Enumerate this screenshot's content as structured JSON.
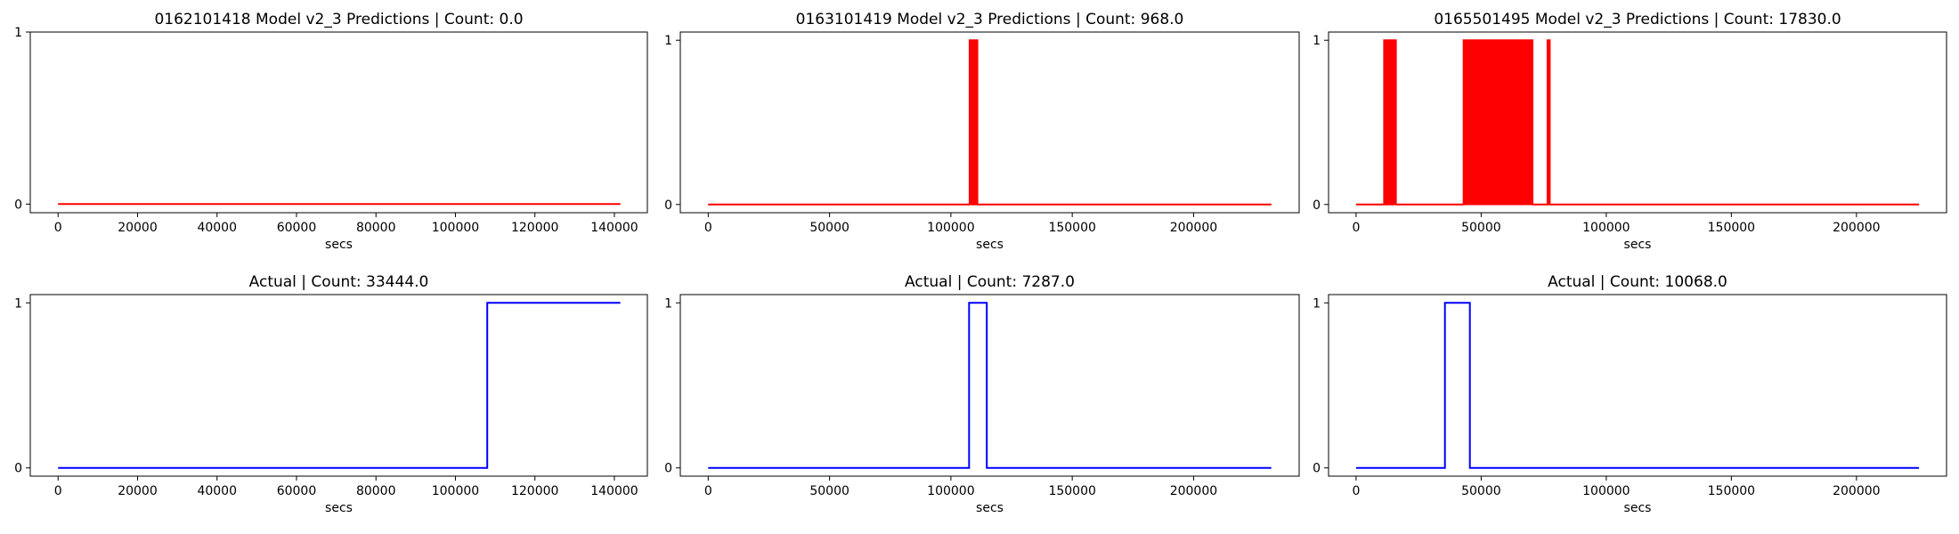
{
  "chart_data": [
    {
      "type": "line",
      "title": "0162101418 Model v2_3 Predictions | Count: 0.0",
      "xlabel": "secs",
      "ylabel": "",
      "xlim": [
        -7000,
        148300
      ],
      "ylim": [
        -0.05,
        1.0
      ],
      "xticks": [
        0,
        20000,
        40000,
        60000,
        80000,
        100000,
        120000,
        140000
      ],
      "yticks": [
        0,
        1
      ],
      "grid": false,
      "series": [
        {
          "color": "#ff0000",
          "fill": false,
          "x": [
            0,
            141500
          ],
          "y": [
            0,
            0
          ]
        }
      ]
    },
    {
      "type": "line",
      "title": "0163101419 Model v2_3 Predictions | Count: 968.0",
      "xlabel": "secs",
      "ylabel": "",
      "xlim": [
        -11500,
        243500
      ],
      "ylim": [
        -0.05,
        1.05
      ],
      "xticks": [
        0,
        50000,
        100000,
        150000,
        200000
      ],
      "yticks": [
        0,
        1
      ],
      "grid": false,
      "series": [
        {
          "color": "#ff0000",
          "fill": true,
          "x": [
            0,
            107700,
            107700,
            109000,
            109000,
            109600,
            109600,
            110900,
            110900,
            232000
          ],
          "y": [
            0,
            0,
            1,
            1,
            0,
            0,
            1,
            1,
            0,
            0
          ]
        }
      ]
    },
    {
      "type": "line",
      "title": "0165501495 Model v2_3 Predictions | Count: 17830.0",
      "xlabel": "secs",
      "ylabel": "",
      "xlim": [
        -11000,
        236000
      ],
      "ylim": [
        -0.05,
        1.05
      ],
      "xticks": [
        0,
        50000,
        100000,
        150000,
        200000
      ],
      "yticks": [
        0,
        1
      ],
      "grid": false,
      "series": [
        {
          "color": "#ff0000",
          "fill": true,
          "x": [
            0,
            11200,
            11200,
            12000,
            12000,
            12700,
            12700,
            13900,
            13900,
            14600,
            14600,
            15900,
            15900,
            36000,
            36000,
            43000,
            43000,
            70500,
            70500,
            76500,
            76500,
            77400,
            77400,
            225000
          ],
          "y": [
            0,
            0,
            1,
            1,
            0,
            0,
            1,
            1,
            0,
            0,
            1,
            1,
            0,
            0,
            0,
            0,
            1,
            1,
            0,
            0,
            1,
            1,
            0,
            0
          ]
        }
      ]
    },
    {
      "type": "line",
      "title": "Actual | Count: 33444.0",
      "xlabel": "secs",
      "ylabel": "",
      "xlim": [
        -7000,
        148300
      ],
      "ylim": [
        -0.05,
        1.05
      ],
      "xticks": [
        0,
        20000,
        40000,
        60000,
        80000,
        100000,
        120000,
        140000
      ],
      "yticks": [
        0,
        1
      ],
      "grid": false,
      "series": [
        {
          "color": "#0000ff",
          "fill": false,
          "x": [
            0,
            108000,
            108000,
            141500
          ],
          "y": [
            0,
            0,
            1,
            1
          ]
        }
      ]
    },
    {
      "type": "line",
      "title": "Actual | Count: 7287.0",
      "xlabel": "secs",
      "ylabel": "",
      "xlim": [
        -11500,
        243500
      ],
      "ylim": [
        -0.05,
        1.05
      ],
      "xticks": [
        0,
        50000,
        100000,
        150000,
        200000
      ],
      "yticks": [
        0,
        1
      ],
      "grid": false,
      "series": [
        {
          "color": "#0000ff",
          "fill": false,
          "x": [
            0,
            107500,
            107500,
            114800,
            114800,
            232000
          ],
          "y": [
            0,
            0,
            1,
            1,
            0,
            0
          ]
        }
      ]
    },
    {
      "type": "line",
      "title": "Actual | Count: 10068.0",
      "xlabel": "secs",
      "ylabel": "",
      "xlim": [
        -11000,
        236000
      ],
      "ylim": [
        -0.05,
        1.05
      ],
      "xticks": [
        0,
        50000,
        100000,
        150000,
        200000
      ],
      "yticks": [
        0,
        1
      ],
      "grid": false,
      "series": [
        {
          "color": "#0000ff",
          "fill": false,
          "x": [
            0,
            35500,
            35500,
            45500,
            45500,
            225000
          ],
          "y": [
            0,
            0,
            1,
            1,
            0,
            0
          ]
        }
      ]
    }
  ]
}
